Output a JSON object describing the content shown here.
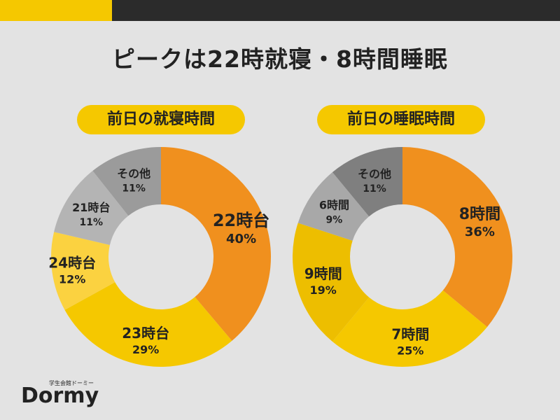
{
  "headline": "ピークは22時就寝・8時間睡眠",
  "brand": {
    "name": "Dormy",
    "tagline": "学生会館ドーミー"
  },
  "chart_data": [
    {
      "type": "pie",
      "title": "前日の就寝時間",
      "slices": [
        {
          "label": "22時台",
          "value": 40,
          "value_label": "40%",
          "color": "#f0901e"
        },
        {
          "label": "23時台",
          "value": 29,
          "value_label": "29%",
          "color": "#f5c800"
        },
        {
          "label": "24時台",
          "value": 12,
          "value_label": "12%",
          "color": "#fbd240"
        },
        {
          "label": "21時台",
          "value": 11,
          "value_label": "11%",
          "color": "#b4b4b4"
        },
        {
          "label": "その他",
          "value": 11,
          "value_label": "11%",
          "color": "#9b9b9b"
        }
      ]
    },
    {
      "type": "pie",
      "title": "前日の睡眠時間",
      "slices": [
        {
          "label": "8時間",
          "value": 36,
          "value_label": "36%",
          "color": "#f0901e"
        },
        {
          "label": "7時間",
          "value": 25,
          "value_label": "25%",
          "color": "#f5c800"
        },
        {
          "label": "9時間",
          "value": 19,
          "value_label": "19%",
          "color": "#edbe00"
        },
        {
          "label": "6時間",
          "value": 9,
          "value_label": "9%",
          "color": "#a8a8a8"
        },
        {
          "label": "その他",
          "value": 11,
          "value_label": "11%",
          "color": "#7f7f7f"
        }
      ]
    }
  ]
}
